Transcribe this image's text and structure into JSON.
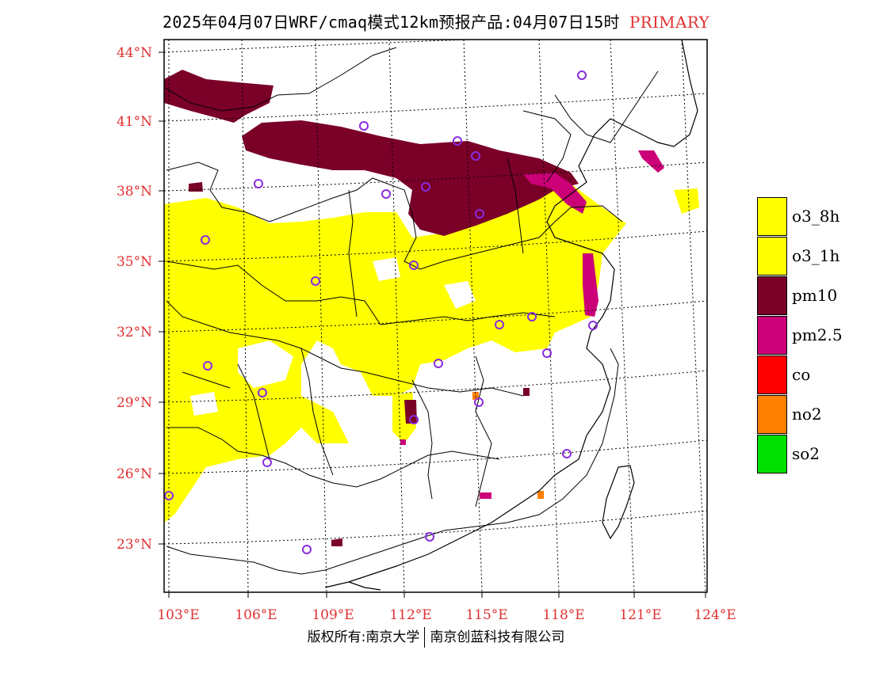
{
  "title": {
    "text": "2025年04月07日WRF/cmaq模式12km预报产品:04月07日15时",
    "tag": "PRIMARY"
  },
  "axes": {
    "lat_ticks": [
      "44°N",
      "41°N",
      "38°N",
      "35°N",
      "32°N",
      "29°N",
      "26°N",
      "23°N"
    ],
    "lon_ticks": [
      "103°E",
      "106°E",
      "109°E",
      "112°E",
      "115°E",
      "118°E",
      "121°E",
      "124°E"
    ]
  },
  "legend": [
    {
      "label": "o3_8h",
      "color": "#ffff00"
    },
    {
      "label": "o3_1h",
      "color": "#ffff00"
    },
    {
      "label": "pm10",
      "color": "#7a0028"
    },
    {
      "label": "pm2.5",
      "color": "#cc0077"
    },
    {
      "label": "co",
      "color": "#ff0000"
    },
    {
      "label": "no2",
      "color": "#ff8000"
    },
    {
      "label": "so2",
      "color": "#00e000"
    }
  ],
  "footer": {
    "left": "版权所有:南京大学",
    "right": "南京创蓝科技有限公司"
  },
  "colors": {
    "o3": "#ffff00",
    "pm10": "#7a0028",
    "pm25": "#cc0077",
    "no2": "#ff8000",
    "station": "#8a2be2",
    "axis_text": "#e03030"
  }
}
